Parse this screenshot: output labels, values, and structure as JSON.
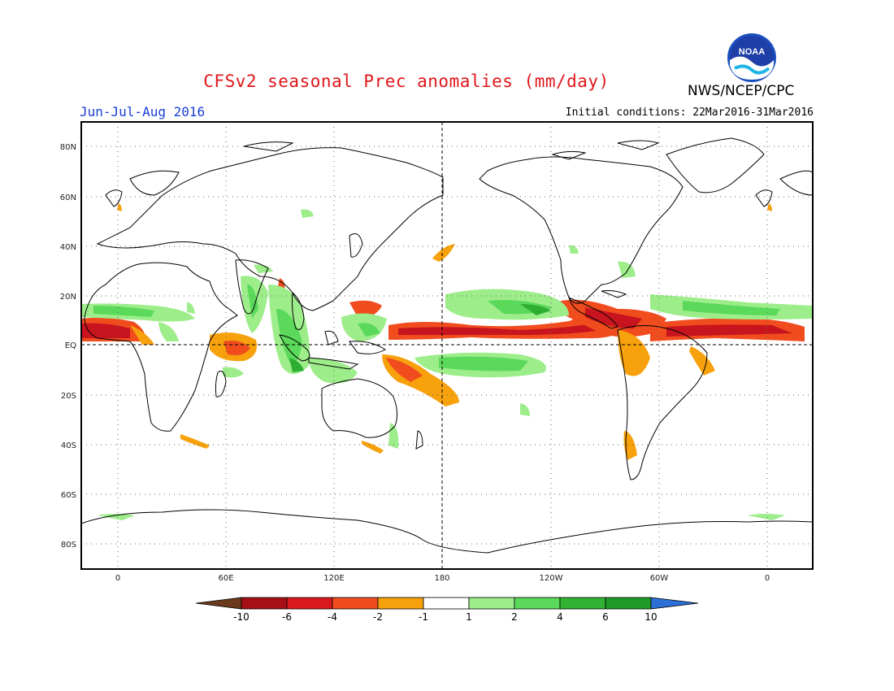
{
  "header": {
    "title": "CFSv2 seasonal Prec anomalies (mm/day)",
    "period": "Jun-Jul-Aug 2016",
    "agency": "NWS/NCEP/CPC",
    "initial_conditions": "Initial conditions: 22Mar2016-31Mar2016",
    "logo_text": "NOAA"
  },
  "axes": {
    "lat_labels": [
      "80N",
      "60N",
      "40N",
      "20N",
      "EQ",
      "20S",
      "40S",
      "60S",
      "80S"
    ],
    "lon_labels": [
      "0",
      "60E",
      "120E",
      "180",
      "120W",
      "60W",
      "0"
    ]
  },
  "colorbar": {
    "labels": [
      "-10",
      "-6",
      "-4",
      "-2",
      "-1",
      "1",
      "2",
      "4",
      "6",
      "10"
    ],
    "colors": [
      "#6b3a1c",
      "#a50f15",
      "#d7191c",
      "#f04c1e",
      "#f7a10c",
      "#ffffff",
      "#9ded8b",
      "#5ad95a",
      "#32b232",
      "#1e9a28",
      "#2c6fd6"
    ]
  },
  "colors": {
    "dry_strong": "#c8141e",
    "dry_mid": "#ef4a1f",
    "dry_weak": "#f5a10d",
    "wet_weak": "#9ded8b",
    "wet_mid": "#5ad95a",
    "wet_strong": "#2fae34"
  }
}
